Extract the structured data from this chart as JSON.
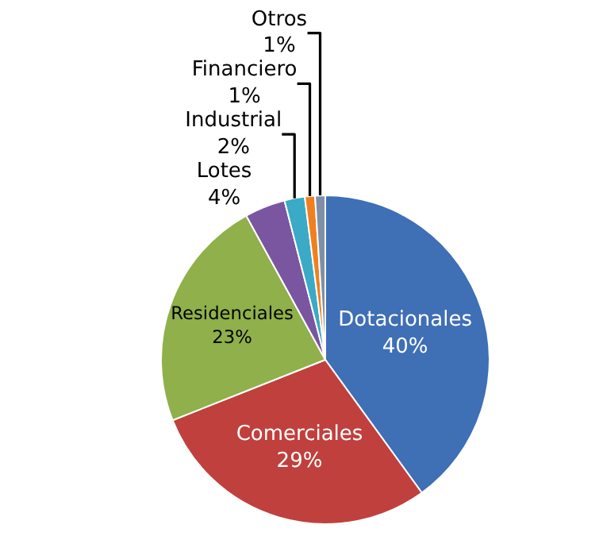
{
  "chart_data": {
    "type": "pie",
    "categories": [
      "Dotacionales",
      "Comerciales",
      "Residenciales",
      "Lotes",
      "Industrial",
      "Financiero",
      "Otros"
    ],
    "values": [
      40,
      29,
      23,
      4,
      2,
      1,
      1
    ],
    "value_labels": [
      "40%",
      "29%",
      "23%",
      "4%",
      "2%",
      "1%",
      "1%"
    ],
    "colors": [
      "#3f6fb5",
      "#c0403d",
      "#8fb04a",
      "#7a55a0",
      "#3aaac6",
      "#f0801f",
      "#7f8fa9"
    ],
    "legend": false
  }
}
